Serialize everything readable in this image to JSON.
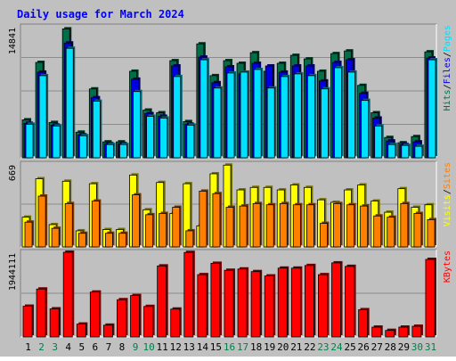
{
  "colors": {
    "background": "#c0c0c0",
    "plot_bg": "#c0c0c0",
    "grid": "#8c8c8c",
    "title": "#0000ff",
    "hits": "#006f47",
    "files": "#0000e0",
    "pages": "#00e0ff",
    "visits": "#ffff00",
    "sites": "#ff8000",
    "kbytes": "#ff0000",
    "weekend_label": "#00804b",
    "weekday_label": "#000000"
  },
  "chart_data": {
    "type": "bar",
    "title": "Daily usage for March 2024",
    "categories": [
      "1",
      "2",
      "3",
      "4",
      "5",
      "6",
      "7",
      "8",
      "9",
      "10",
      "11",
      "12",
      "13",
      "14",
      "15",
      "16",
      "17",
      "18",
      "19",
      "20",
      "21",
      "22",
      "23",
      "24",
      "25",
      "26",
      "27",
      "28",
      "29",
      "30",
      "31"
    ],
    "weekend_days": [
      "2",
      "3",
      "9",
      "10",
      "16",
      "17",
      "23",
      "24",
      "30",
      "31"
    ],
    "panels": [
      {
        "name": "hits-files-pages",
        "ymax_label": "14841",
        "ymax": 14841,
        "legend": [
          {
            "label": "Hits",
            "color": "#006f47"
          },
          {
            "label": "/",
            "color": "#000000"
          },
          {
            "label": "Files",
            "color": "#0000e0"
          },
          {
            "label": "/",
            "color": "#000000"
          },
          {
            "label": "Pages",
            "color": "#00e0ff"
          }
        ],
        "series": [
          {
            "name": "Hits",
            "color": "#006f47",
            "values": [
              4300,
              10800,
              4000,
              14600,
              2900,
              7800,
              1800,
              1800,
              9800,
              5400,
              5100,
              11000,
              4100,
              12900,
              9300,
              11000,
              10700,
              11900,
              9800,
              10700,
              11600,
              11200,
              9800,
              11800,
              12100,
              8200,
              5100,
              2300,
              1700,
              2400,
              12000
            ]
          },
          {
            "name": "Files",
            "color": "#0000e0",
            "values": [
              3900,
              9700,
              3700,
              13000,
              2600,
              6800,
              1600,
              1600,
              8900,
              5000,
              4700,
              10400,
              3800,
              11400,
              8500,
              10300,
              9500,
              10700,
              10400,
              9700,
              10400,
              10400,
              8700,
              10800,
              11100,
              7300,
              4500,
              1900,
              1500,
              1800,
              11300
            ]
          },
          {
            "name": "Pages",
            "color": "#00e0ff",
            "values": [
              3800,
              9300,
              3600,
              12400,
              2500,
              6400,
              1500,
              1500,
              7500,
              4700,
              4500,
              9200,
              3700,
              11100,
              7900,
              9600,
              9700,
              10000,
              7900,
              9200,
              9500,
              9300,
              7800,
              10200,
              9700,
              6500,
              3600,
              1500,
              1400,
              1300,
              11100
            ]
          }
        ]
      },
      {
        "name": "visits-sites",
        "ymax_label": "669",
        "ymax": 669,
        "legend": [
          {
            "label": "Visits",
            "color": "#ffff00"
          },
          {
            "label": "/",
            "color": "#000000"
          },
          {
            "label": "Sites",
            "color": "#ff8000"
          }
        ],
        "series": [
          {
            "name": "Visits",
            "color": "#ffff00",
            "values": [
              240,
              550,
              180,
              530,
              130,
              510,
              140,
              140,
              580,
              300,
              520,
              270,
              510,
              170,
              590,
              660,
              460,
              480,
              480,
              460,
              500,
              480,
              380,
              360,
              460,
              500,
              370,
              280,
              470,
              320,
              340
            ]
          },
          {
            "name": "Sites",
            "color": "#ff8000",
            "values": [
              200,
              410,
              150,
              350,
              110,
              370,
              110,
              110,
              420,
              260,
              270,
              320,
              130,
              450,
              430,
              320,
              330,
              350,
              340,
              350,
              340,
              340,
              190,
              350,
              340,
              330,
              250,
              240,
              350,
              270,
              220
            ]
          }
        ]
      },
      {
        "name": "kbytes",
        "ymax_label": "1944111",
        "ymax": 1944111,
        "legend": [
          {
            "label": "KBytes",
            "color": "#ff0000"
          }
        ],
        "series": [
          {
            "name": "KBytes",
            "color": "#ff0000",
            "values": [
              705000,
              1100000,
              645000,
              1944111,
              295000,
              1030000,
              270000,
              855000,
              950000,
              700000,
              1630000,
              640000,
              1940000,
              1430000,
              1690000,
              1530000,
              1560000,
              1500000,
              1400000,
              1580000,
              1580000,
              1640000,
              1430000,
              1700000,
              1620000,
              625000,
              225000,
              150000,
              225000,
              245000,
              1780000
            ]
          }
        ]
      }
    ]
  }
}
